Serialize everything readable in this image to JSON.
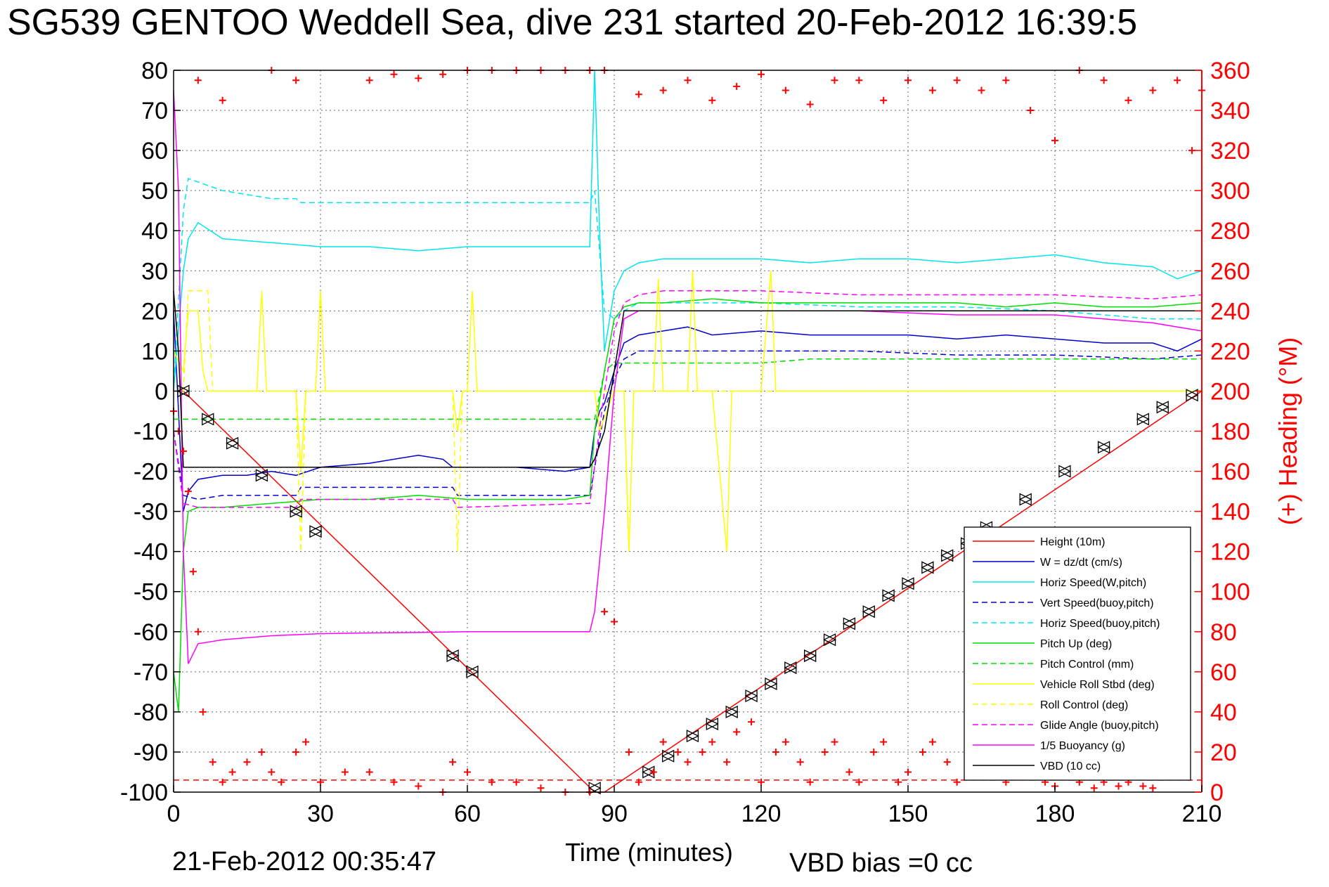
{
  "title": "SG539 GENTOO Weddell Sea, dive 231 started 20-Feb-2012 16:39:5",
  "footer": {
    "date": "21-Feb-2012 00:35:47",
    "vbd_bias": "VBD bias =0 cc"
  },
  "colors": {
    "red": "#ff0000",
    "blue": "#0000cc",
    "cyan": "#00e5ee",
    "green": "#00dd00",
    "yellow": "#ffff00",
    "magenta": "#ff00ff",
    "black": "#000000"
  },
  "chart_data": {
    "type": "line",
    "title": "SG539 GENTOO Weddell Sea, dive 231 started 20-Feb-2012 16:39:5",
    "xlabel": "Time (minutes)",
    "ylabel_right": "(+) Heading (°M)",
    "xlim": [
      0,
      210
    ],
    "ylim": [
      -100,
      80
    ],
    "ylim_right": [
      0,
      360
    ],
    "x_ticks": [
      "0",
      "30",
      "60",
      "90",
      "120",
      "150",
      "180",
      "210"
    ],
    "y_ticks": [
      "80",
      "70",
      "60",
      "50",
      "40",
      "30",
      "20",
      "10",
      "0",
      "-10",
      "-20",
      "-30",
      "-40",
      "-50",
      "-60",
      "-70",
      "-80",
      "-90",
      "-100"
    ],
    "y_ticks_right": [
      "360",
      "340",
      "320",
      "300",
      "280",
      "260",
      "240",
      "220",
      "200",
      "180",
      "160",
      "140",
      "120",
      "100",
      "80",
      "60",
      "40",
      "20",
      "0"
    ],
    "grid": true,
    "legend_position": "bottom-right",
    "series": [
      {
        "name": "Height (10m)",
        "color": "#ff0000",
        "style": "solid",
        "x": [
          0,
          2,
          86,
          88,
          210
        ],
        "y": [
          0,
          0,
          -100,
          -100,
          0
        ]
      },
      {
        "name": "W = dz/dt (cm/s)",
        "color": "#0000cc",
        "style": "solid",
        "x": [
          0,
          1,
          2,
          3,
          5,
          10,
          15,
          20,
          25,
          30,
          40,
          45,
          50,
          55,
          57,
          60,
          70,
          80,
          85,
          86,
          87,
          88,
          90,
          92,
          95,
          100,
          105,
          110,
          120,
          130,
          140,
          150,
          160,
          170,
          180,
          190,
          200,
          205,
          210
        ],
        "y": [
          20,
          -5,
          -30,
          -25,
          -22,
          -21,
          -21,
          -20,
          -21,
          -19,
          -18,
          -17,
          -16,
          -17,
          -19,
          -19,
          -19,
          -20,
          -19,
          -10,
          -5,
          -3,
          5,
          12,
          14,
          15,
          16,
          14,
          15,
          14,
          14,
          14,
          13,
          14,
          13,
          12,
          12,
          10,
          13
        ]
      },
      {
        "name": "Horiz Speed(W,pitch)",
        "color": "#00e5ee",
        "style": "solid",
        "x": [
          0,
          2,
          3,
          5,
          10,
          20,
          30,
          40,
          50,
          60,
          70,
          80,
          85,
          86,
          87,
          88,
          90,
          92,
          95,
          100,
          110,
          120,
          130,
          140,
          150,
          160,
          170,
          180,
          190,
          200,
          205,
          210
        ],
        "y": [
          0,
          30,
          38,
          42,
          38,
          37,
          36,
          36,
          35,
          36,
          36,
          36,
          36,
          80,
          40,
          10,
          25,
          30,
          32,
          33,
          33,
          33,
          32,
          33,
          33,
          32,
          33,
          34,
          32,
          31,
          28,
          30
        ]
      },
      {
        "name": "Vert Speed(buoy,pitch)",
        "color": "#0000cc",
        "style": "dashed",
        "x": [
          0,
          2,
          5,
          10,
          20,
          25,
          26,
          50,
          57,
          58,
          85,
          88,
          90,
          92,
          95,
          100,
          120,
          140,
          160,
          180,
          200,
          210
        ],
        "y": [
          -10,
          -26,
          -27,
          -26,
          -26,
          -26,
          -24,
          -24,
          -24,
          -26,
          -26,
          -5,
          3,
          8,
          10,
          10,
          10,
          10,
          9,
          9,
          8,
          9
        ]
      },
      {
        "name": "Horiz Speed(buoy,pitch)",
        "color": "#00e5ee",
        "style": "dashed",
        "x": [
          0,
          2,
          3,
          10,
          20,
          25,
          26,
          50,
          57,
          58,
          85,
          86,
          88,
          90,
          92,
          95,
          100,
          120,
          140,
          160,
          180,
          200,
          210
        ],
        "y": [
          0,
          45,
          53,
          50,
          48,
          48,
          47,
          47,
          47,
          47,
          47,
          50,
          20,
          18,
          20,
          22,
          22,
          22,
          21,
          21,
          20,
          18,
          18
        ]
      },
      {
        "name": "Pitch Up (deg)",
        "color": "#00dd00",
        "style": "solid",
        "x": [
          0,
          1,
          2,
          3,
          5,
          10,
          20,
          30,
          40,
          50,
          60,
          70,
          80,
          85,
          86,
          88,
          90,
          92,
          95,
          100,
          110,
          120,
          130,
          140,
          150,
          160,
          170,
          180,
          190,
          200,
          210
        ],
        "y": [
          -70,
          -80,
          -40,
          -30,
          -29,
          -29,
          -28,
          -27,
          -27,
          -26,
          -27,
          -27,
          -27,
          -26,
          -10,
          5,
          18,
          21,
          22,
          22,
          23,
          22,
          22,
          22,
          22,
          22,
          21,
          22,
          21,
          21,
          22
        ]
      },
      {
        "name": "Pitch Control (mm)",
        "color": "#00dd00",
        "style": "dashed",
        "x": [
          0,
          2,
          3,
          85,
          86,
          88,
          90,
          92,
          100,
          110,
          120,
          130,
          140,
          150,
          160,
          170,
          180,
          190,
          200,
          210
        ],
        "y": [
          -7,
          -7,
          -7,
          -7,
          -7,
          5,
          7,
          7,
          7,
          7,
          7,
          8,
          8,
          8,
          8,
          8,
          8,
          8,
          8,
          8
        ]
      },
      {
        "name": "Vehicle Roll Stbd (deg)",
        "color": "#ffff00",
        "style": "solid",
        "x": [
          0,
          2,
          3,
          5,
          6,
          7,
          10,
          17,
          18,
          19,
          25,
          26,
          27,
          29,
          30,
          31,
          57,
          58,
          59,
          60,
          61,
          62,
          85,
          86,
          87,
          90,
          92,
          93,
          94,
          95,
          98,
          99,
          100,
          105,
          106,
          107,
          110,
          113,
          114,
          115,
          120,
          122,
          123,
          124,
          130,
          140,
          150,
          160,
          170,
          180,
          190,
          200,
          205,
          210
        ],
        "y": [
          10,
          5,
          20,
          20,
          5,
          0,
          0,
          0,
          25,
          0,
          0,
          -20,
          0,
          0,
          25,
          0,
          0,
          -10,
          0,
          0,
          25,
          0,
          0,
          0,
          -10,
          0,
          0,
          -40,
          0,
          0,
          0,
          28,
          0,
          0,
          30,
          0,
          0,
          -40,
          0,
          0,
          0,
          30,
          0,
          0,
          0,
          0,
          0,
          0,
          0,
          0,
          0,
          0,
          0,
          0
        ]
      },
      {
        "name": "Roll Control (deg)",
        "color": "#ffff00",
        "style": "dashed",
        "x": [
          0,
          2,
          3,
          7,
          8,
          25,
          26,
          27,
          57,
          58,
          59,
          85,
          86,
          87,
          92,
          93,
          94,
          210
        ],
        "y": [
          0,
          0,
          25,
          25,
          0,
          0,
          -40,
          0,
          0,
          -40,
          0,
          0,
          0,
          0,
          0,
          -40,
          0,
          0
        ]
      },
      {
        "name": "Glide Angle (buoy,pitch)",
        "color": "#ff00ff",
        "style": "dashed",
        "x": [
          0,
          2,
          5,
          10,
          20,
          25,
          26,
          50,
          57,
          58,
          85,
          88,
          90,
          92,
          95,
          100,
          120,
          140,
          160,
          180,
          200,
          210
        ],
        "y": [
          -10,
          -28,
          -29,
          -29,
          -29,
          -29,
          -27,
          -27,
          -27,
          -29,
          -28,
          0,
          15,
          22,
          24,
          25,
          25,
          24,
          24,
          24,
          23,
          24
        ]
      },
      {
        "name": "1/5 Buoyancy (g)",
        "color": "#ff00ff",
        "style": "solid",
        "x": [
          0,
          1,
          2,
          3,
          5,
          10,
          20,
          30,
          40,
          50,
          60,
          70,
          80,
          85,
          86,
          88,
          90,
          92,
          95,
          100,
          120,
          140,
          160,
          180,
          190,
          200,
          205,
          210
        ],
        "y": [
          75,
          50,
          -40,
          -68,
          -63,
          -62,
          -61,
          -60.5,
          -60.3,
          -60.2,
          -60,
          -60,
          -60,
          -60,
          -55,
          -30,
          0,
          18,
          20,
          20,
          20,
          20,
          19,
          19,
          18,
          17,
          16,
          15
        ]
      },
      {
        "name": "VBD (10 cc)",
        "color": "#000000",
        "style": "solid",
        "x": [
          0,
          1,
          2,
          3,
          5,
          10,
          20,
          30,
          40,
          50,
          60,
          70,
          80,
          85,
          86,
          88,
          90,
          92,
          95,
          100,
          120,
          140,
          160,
          180,
          200,
          210
        ],
        "y": [
          25,
          10,
          -19,
          -19,
          -19,
          -19,
          -19,
          -19,
          -19,
          -19,
          -19,
          -19,
          -19,
          -19,
          -17,
          -10,
          5,
          20,
          20,
          20,
          20,
          20,
          20,
          20,
          20,
          20
        ]
      }
    ],
    "height_markers": {
      "x": [
        2,
        7,
        12,
        18,
        25,
        29,
        57,
        61,
        86,
        97,
        101,
        106,
        110,
        114,
        118,
        122,
        126,
        130,
        134,
        138,
        142,
        146,
        150,
        154,
        158,
        162,
        166,
        174,
        182,
        190,
        198,
        202,
        208
      ],
      "y": [
        0,
        -7,
        -13,
        -21,
        -30,
        -35,
        -66,
        -70,
        -99,
        -95,
        -91,
        -86,
        -83,
        -80,
        -76,
        -73,
        -69,
        -66,
        -62,
        -58,
        -55,
        -51,
        -48,
        -44,
        -41,
        -38,
        -34,
        -27,
        -20,
        -14,
        -7,
        -4,
        -1
      ]
    },
    "heading_points": {
      "x": [
        0,
        1,
        2,
        3,
        4,
        5,
        6,
        8,
        10,
        12,
        15,
        18,
        20,
        22,
        25,
        27,
        30,
        35,
        40,
        45,
        50,
        55,
        57,
        60,
        65,
        70,
        75,
        80,
        85,
        88,
        90,
        93,
        95,
        98,
        100,
        103,
        105,
        108,
        110,
        113,
        115,
        118,
        120,
        123,
        125,
        128,
        130,
        133,
        135,
        138,
        140,
        143,
        145,
        148,
        150,
        153,
        155,
        158,
        160,
        163,
        165,
        168,
        170,
        173,
        175,
        178,
        180,
        183,
        185,
        188,
        190,
        193,
        195,
        198,
        200,
        203,
        205,
        208,
        210
      ],
      "y": [
        190,
        180,
        170,
        150,
        110,
        80,
        40,
        15,
        5,
        10,
        15,
        20,
        10,
        5,
        20,
        25,
        5,
        10,
        10,
        5,
        3,
        0,
        15,
        10,
        5,
        5,
        2,
        0,
        0,
        90,
        85,
        20,
        5,
        10,
        25,
        20,
        15,
        20,
        25,
        15,
        30,
        35,
        5,
        20,
        25,
        15,
        5,
        20,
        25,
        10,
        5,
        20,
        25,
        5,
        10,
        20,
        25,
        15,
        5,
        10,
        25,
        20,
        5,
        10,
        15,
        5,
        3,
        10,
        5,
        2,
        5,
        3,
        5,
        3,
        2,
        10,
        40,
        320,
        350
      ]
    },
    "heading_top_points": {
      "x": [
        5,
        10,
        20,
        25,
        40,
        45,
        50,
        55,
        60,
        65,
        70,
        75,
        80,
        85,
        88,
        95,
        100,
        105,
        110,
        115,
        120,
        125,
        130,
        135,
        140,
        145,
        150,
        155,
        160,
        165,
        170,
        175,
        180,
        185,
        190,
        195,
        200,
        205
      ],
      "y": [
        355,
        345,
        360,
        355,
        355,
        358,
        356,
        358,
        360,
        360,
        360,
        360,
        360,
        360,
        360,
        348,
        350,
        355,
        345,
        352,
        358,
        350,
        343,
        355,
        355,
        345,
        355,
        350,
        355,
        350,
        355,
        340,
        325,
        360,
        355,
        345,
        350,
        355
      ]
    },
    "reference_line_y": -97
  },
  "legend": {
    "items": [
      {
        "label": "Height (10m)",
        "color": "#ff0000",
        "style": "solid"
      },
      {
        "label": "W = dz/dt (cm/s)",
        "color": "#0000cc",
        "style": "solid"
      },
      {
        "label": "Horiz Speed(W,pitch)",
        "color": "#00e5ee",
        "style": "solid"
      },
      {
        "label": "Vert Speed(buoy,pitch)",
        "color": "#0000cc",
        "style": "dashed"
      },
      {
        "label": "Horiz Speed(buoy,pitch)",
        "color": "#00e5ee",
        "style": "dashed"
      },
      {
        "label": "Pitch Up (deg)",
        "color": "#00dd00",
        "style": "solid"
      },
      {
        "label": "Pitch Control (mm)",
        "color": "#00dd00",
        "style": "dashed"
      },
      {
        "label": "Vehicle Roll Stbd (deg)",
        "color": "#ffff00",
        "style": "solid"
      },
      {
        "label": "Roll Control (deg)",
        "color": "#ffff00",
        "style": "dashed"
      },
      {
        "label": "Glide Angle (buoy,pitch)",
        "color": "#ff00ff",
        "style": "dashed"
      },
      {
        "label": "1/5 Buoyancy (g)",
        "color": "#ff00ff",
        "style": "solid"
      },
      {
        "label": "VBD (10 cc)",
        "color": "#000000",
        "style": "solid"
      }
    ]
  }
}
